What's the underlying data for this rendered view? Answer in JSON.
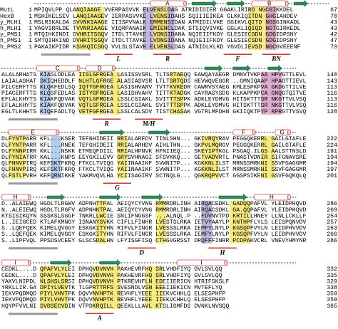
{
  "blocks": [
    {
      "names": [
        "MutL",
        "HexB",
        "y_MLH1",
        "h_MLH1",
        "y_PMS1",
        "h_PMS1",
        "h_PMS2"
      ],
      "starts": [
        "1",
        "1",
        "1",
        "1",
        "1",
        "1",
        "1"
      ],
      "rows": [
        "MPIQVLPP QLANQIAAGE VVERPASVVK ELVENSLDAG ATRIDIDIER GGAKLIRIRD NGCGIKKDEL",
        "MSHIKELSEV LANQIAAGEV IERPASVVKE LVENSIDAHS SQIIIEIKEA GLKKIQITDN GHGIAHDEV",
        "MSLRIKALDA SVVNKIAAGE IIISPVNALK EMMENSIDAN ATMIDILVKE GGIKVLQITD NGSGINKADL",
        "VAGVIRRLDE TVVNRIAAGE VIQRPANAIK EMIENCLDAK STSIQVIVKE GGLKLIQIQD NGTGIRKEDL",
        "MTQIHKINDI DVHRITSGQV ITDLTTAVKE LVDNSIDANA NQIEIIFKDY GLESIECSDN GDGIDPSNY",
        "SMTQIHKIND DVHRITSGQV ITDLTTAVKE LVDNSIDANA NQIEIIFKDY GLESIECSDN GDGIDPSNY",
        "PAKAIKPIDR KSVHQICSGQ VVLSLSTAVK ELVENSLDAG ATNIDLKLKD YGVDLIEVSD NGCGVEEENF"
      ],
      "ends": [
        "67",
        "70",
        "43",
        "43",
        "42",
        "47",
        "73"
      ],
      "helices": [
        "A",
        "B"
      ],
      "annotations": [
        "L",
        "R",
        "F",
        "BN"
      ]
    },
    {
      "rows": [
        "ALALARHATS KIASLDDLEA IISLGFRGEA LASISSVSRL TLTSRTAEQQ EAWQAYAEGR DMNVTVKPAA HPVGTTLEVL",
        "LAIALASHAT SKIQHEDDLF NLHTLGFRGE ALASIASVSR LTLTSRTQDS HEVWQVEGGR ..GMNIQAAP HPAGTTIEVL",
        "PILCERFTTS KLQKFEDLSQ IQTYGFRGEA LASISHVARV TVTTKVKEDR CAWRVSYAEG KMLESPKPVA GKDGTTILVE",
        "PIACERFTTS KLQSFEDLAS ISTYGFRGEA LASISHVAHV TITTKTADGK CAYRASYSDG KLKAPPKPCA GNQGTQITVE",
        "EFLALKHYTS KIAKFQDVAK VQTLGFRGEA LSSLCGIAKL SVITTTSPPK ADKLEYDMVG HITSKTTTSR NKGTTVLVSQ",
        "EFLALKHYTS KIAKFQDVAK VQTLGFRGEA LSSLCGIAKL SVITTTSPPK ADKLEYDMVG HITSKTTTSR NKGTTVLVSQ",
        "EGLTLKHHTS KIQEFADLTQ VETFGFRGEA LSSLCALSDV TISTCHASAK VGTRLMFDHN GKIIQKTPYP RPRGTTVSVQ"
      ],
      "ends": [
        "140",
        "143",
        "113",
        "116",
        "113",
        "116",
        "128"
      ],
      "helices": [
        "C",
        "D"
      ],
      "annotations": [
        "M/H",
        "R"
      ]
    },
    {
      "rows": [
        "DLFYNTPARR KFL...KSER TEFNHIDEII RRIALARFDV TINLSHN... GKIVRQYRAV PEGGQKERRL GAILGTAFLE",
        "DLFYNTPARR KFL...RNEK TEFGHIDEII RRIALARHDV AIHLTHN... GKPVLMQRGV PEGGQKERRL GAILGTAFLE",
        "DLFYNNPIRR KKL...NSKK ETMEQFDIIL RRIALHPNVK HFNIIEQ... SKEYIPTKGL PSGAQ.ILGS AALSTTNSLD",
        "DLFYNIATRR KAL...KNPS EEYGKILEVV GRYSVHNAGI SFSVKKQ... GETVADVRTL PNASTVDNIR SIFGNAVSRE",
        "QLFHNVPIRQ KEFSKTFKRQ FTKCLTVIQG YAIINAAIKF SVWNITP... KGKKNLILST MRNSSMRKNI SSVFGAGGMR",
        "QLFHNVPIRQ KEFSKTFKRQ FTKCLTVIQG YAIINAAIKF SVWNITP... KGKKNLILST MRNSSMRKNI SSVFGAGGMR",
        "QLFSTLPVRH KEFQRNIKKE YAKMVQVLHA YCIISAGIRV SCTNQLG... QGKRQPVVCT GGSPSIKENI GSVFGQKQLQ"
      ],
      "ends": [
        "222",
        "224",
        "191",
        "194",
        "194",
        "197",
        "201"
      ],
      "helices": [
        "E",
        "F",
        "G"
      ],
      "annotations": [
        "G"
      ]
    },
    {
      "rows": [
        "D..ALAIEWQ HGDLTLRGWV ADPNHTTPAL AEIQYCYVNG RMMRDRLINH AIRQACEDKL GADQQPAFVL YLEIDPHQVD",
        "N..ALEIEWQ HGDLTLRGFV ADPNHKTPAL AEIQYCYVNG RMMRDRLINH AIRQACSDKL GA.QQPAFVL YLEIDPHQVD",
        "KTSISIKQYN SSSKSLSGGF TNKRLLWCIE SNLIFNGGSF ...ALNQL.P ..FDVNVTPD KRTILLHNEY LLNLLCKLLF",
        "L..IEIGCED KTLAFKMNGY ISNANYSVKK CIFLLFINHR LVESTSLRKA IETVYAAYLP KNTHPFLYLS LEISPQNVDV",
        "S..LQEFQEK KIMELQVGGY ESKGKITYHN RIFVLFINGR LVESSSLRKA IEMFYLNYLP KGSQPFVYLN LEIDPHVVDV",
        "S..LQEFQEK KIMELQVGGY ESKGKITYHN RIFVLFINGR LVESSSLRKA IEMFYLNYLP KGSQPFVYLN LEIDPHVVDV",
        "S..LIPFVQL PPSDSVCEEY GLSCSDALHN LFYISGFISQ CTHGVGRSST DRQFFFINRR PCDPAKVCRL VNEVYHMYNR"
      ],
      "ends": [
        "286",
        "269",
        "254",
        "257",
        "263",
        "266",
        "286"
      ],
      "helices": [
        "H"
      ],
      "annotations": [
        "D",
        "H"
      ]
    },
    {
      "rows": [
        "CEDKL....D QPAFVLYLEI DPHQVDVNVH PAKHEVRFHQ SRLVHDFIYQ GVLSVLQQ",
        "CEDKL....D QPAFVLYLEI DPHQVDVNVH PAKHEVRFHQ SRLVHDFIYQ GVLSVLQQ",
        "YAKVLNIPDL NLSHSLSRSI DPHQVDVNVH PTKREVHFLN EDEIIERICN HTRIFSKSLF",
        "YRKLLIR.GA DPIYLVEVTK TLGPRTTRFS SVESNDLVSN EEEIIEKICN MVTEFLYQ",
        "IEKVPQDMQD PIYLVHVTPK DQVVNVHPTK REVHFLYEEE IIEKVCHHLQ ELSESPHFP",
        "IEKVPQDMQD PIYLVHVTPK DQVVNVHPTK REVHFLYEEE IIEKVCHHLQ ELSESPHFP",
        "HQYPFVVLNI SVDSECVDIN VTPDKRQILL QEEKLLLAVL KTSLIGMFDS DVNKLNVSQQ"
      ],
      "ends": [
        "332",
        "335",
        "329",
        "338",
        "359",
        "359",
        "365"
      ],
      "helices": [
        "I"
      ],
      "annotations": [
        "A"
      ]
    }
  ]
}
